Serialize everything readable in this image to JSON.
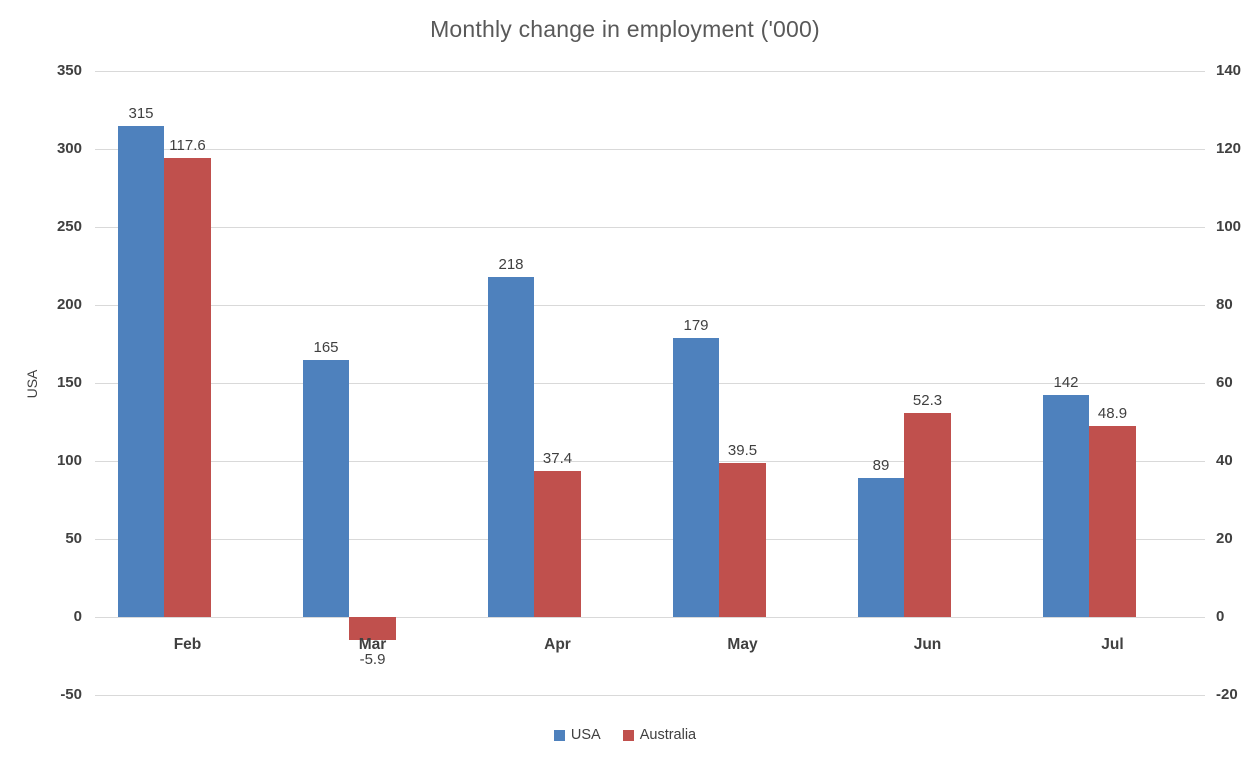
{
  "chart_data": {
    "type": "bar",
    "title": "Monthly change in employment ('000)",
    "categories": [
      "Feb",
      "Mar",
      "Apr",
      "May",
      "Jun",
      "Jul"
    ],
    "series": [
      {
        "name": "USA",
        "axis": "primary",
        "color": "#4E81BD",
        "values": [
          315,
          165,
          218,
          179,
          89,
          142
        ],
        "data_labels": [
          "315",
          "165",
          "218",
          "179",
          "89",
          "142"
        ]
      },
      {
        "name": "Australia",
        "axis": "secondary",
        "color": "#C0504D",
        "values": [
          117.6,
          -5.9,
          37.4,
          39.5,
          52.3,
          48.9
        ],
        "data_labels": [
          "117.6",
          "-5.9",
          "37.4",
          "39.5",
          "52.3",
          "48.9"
        ]
      }
    ],
    "primary_axis": {
      "title": "USA",
      "min": -50,
      "max": 350,
      "step": 50,
      "tick_labels": [
        "350",
        "300",
        "250",
        "200",
        "150",
        "100",
        "50",
        "0",
        "-50"
      ]
    },
    "secondary_axis": {
      "title": "",
      "min": -20,
      "max": 140,
      "step": 20,
      "tick_labels": [
        "140",
        "120",
        "100",
        "80",
        "60",
        "40",
        "20",
        "0",
        "-20"
      ]
    },
    "legend": {
      "position": "bottom",
      "entries": [
        {
          "label": "USA",
          "color": "#4E81BD"
        },
        {
          "label": "Australia",
          "color": "#C0504D"
        }
      ]
    },
    "grid": true,
    "colors": {
      "grid": "#D9D9D9",
      "axis_text": "#404040",
      "title_text": "#595959",
      "background": "#FFFFFF"
    }
  }
}
